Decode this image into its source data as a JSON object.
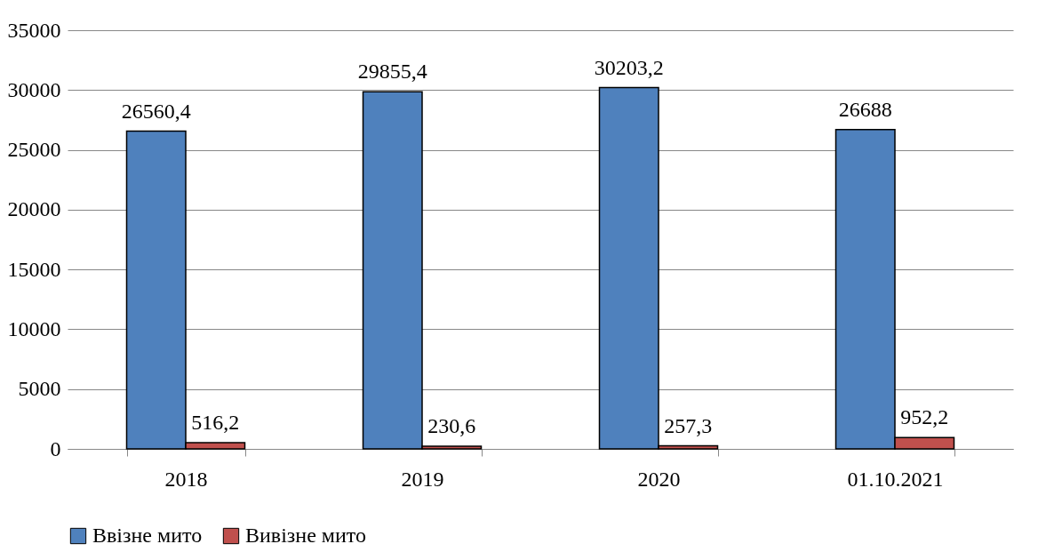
{
  "chart_data": {
    "type": "bar",
    "categories": [
      "2018",
      "2019",
      "2020",
      "01.10.2021"
    ],
    "series": [
      {
        "name": "Ввізне мито",
        "color": "#4f81bd",
        "values": [
          26560.4,
          29855.4,
          30203.2,
          26688
        ],
        "value_labels": [
          "26560,4",
          "29855,4",
          "30203,2",
          "26688"
        ]
      },
      {
        "name": "Вивізне мито",
        "color": "#c0504d",
        "values": [
          516.2,
          230.6,
          257.3,
          952.2
        ],
        "value_labels": [
          "516,2",
          "230,6",
          "257,3",
          "952,2"
        ]
      }
    ],
    "ylim": [
      0,
      35000
    ],
    "yticks": [
      0,
      5000,
      10000,
      15000,
      20000,
      25000,
      30000,
      35000
    ],
    "grid": "y",
    "legend": "bottom"
  }
}
